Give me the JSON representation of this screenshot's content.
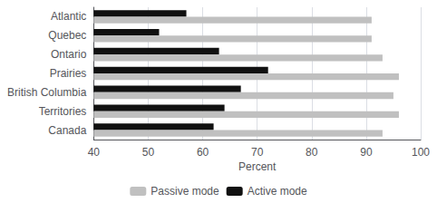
{
  "chart_data": {
    "type": "bar",
    "orientation": "horizontal",
    "categories": [
      "Atlantic",
      "Quebec",
      "Ontario",
      "Prairies",
      "British Columbia",
      "Territories",
      "Canada"
    ],
    "series": [
      {
        "name": "Passive mode",
        "color": "#c0c0c0",
        "values": [
          91,
          91,
          93,
          96,
          95,
          96,
          93
        ]
      },
      {
        "name": "Active mode",
        "color": "#111111",
        "values": [
          57,
          52,
          63,
          72,
          67,
          64,
          62
        ]
      }
    ],
    "xlabel": "Percent",
    "xlim": [
      40,
      100
    ],
    "xticks": [
      40,
      50,
      60,
      70,
      80,
      90,
      100
    ],
    "grid": true,
    "legend": "bottom"
  }
}
